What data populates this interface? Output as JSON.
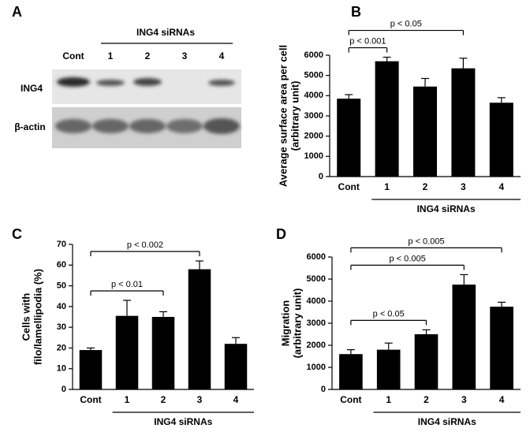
{
  "blot": {
    "panel": "A",
    "group_label": "ING4 siRNAs",
    "lanes": [
      "Cont",
      "1",
      "2",
      "3",
      "4"
    ],
    "rows": [
      "ING4",
      "β-actin"
    ]
  },
  "chart_data": [
    {
      "type": "bar",
      "panel": "B",
      "ylabel": [
        "Average surface area per cell",
        "(arbitrary unit)"
      ],
      "categories": [
        "Cont",
        "1",
        "2",
        "3",
        "4"
      ],
      "values": [
        3850,
        5700,
        4450,
        5350,
        3650
      ],
      "errors": [
        200,
        200,
        400,
        500,
        250
      ],
      "color": "#000000",
      "ylim": [
        0,
        6000
      ],
      "yticks": [
        0,
        1000,
        2000,
        3000,
        4000,
        5000,
        6000
      ],
      "group_label": "ING4 siRNAs",
      "annotations": [
        {
          "text": "p < 0.001",
          "from": "Cont",
          "to": "1"
        },
        {
          "text": "p < 0.05",
          "from": "Cont",
          "to": "3"
        }
      ]
    },
    {
      "type": "bar",
      "panel": "C",
      "ylabel": [
        "Cells with",
        "filo/lamellipodia (%)"
      ],
      "categories": [
        "Cont",
        "1",
        "2",
        "3",
        "4"
      ],
      "values": [
        19,
        35.5,
        35,
        58,
        22
      ],
      "errors": [
        1,
        7.5,
        2.5,
        4,
        3
      ],
      "color": "#000000",
      "ylim": [
        0,
        70
      ],
      "yticks": [
        0,
        10,
        20,
        30,
        40,
        50,
        60,
        70
      ],
      "group_label": "ING4 siRNAs",
      "annotations": [
        {
          "text": "p < 0.01",
          "from": "Cont",
          "to": "2"
        },
        {
          "text": "p < 0.002",
          "from": "Cont",
          "to": "3"
        }
      ]
    },
    {
      "type": "bar",
      "panel": "D",
      "ylabel": [
        "Migration",
        "(arbitrary unit)"
      ],
      "categories": [
        "Cont",
        "1",
        "2",
        "3",
        "4"
      ],
      "values": [
        1600,
        1800,
        2500,
        4750,
        3750
      ],
      "errors": [
        200,
        300,
        200,
        450,
        200
      ],
      "color": "#000000",
      "ylim": [
        0,
        6000
      ],
      "yticks": [
        0,
        1000,
        2000,
        3000,
        4000,
        5000,
        6000
      ],
      "group_label": "ING4 siRNAs",
      "annotations": [
        {
          "text": "p < 0.05",
          "from": "Cont",
          "to": "2"
        },
        {
          "text": "p < 0.005",
          "from": "Cont",
          "to": "3"
        },
        {
          "text": "p < 0.005",
          "from": "Cont",
          "to": "4"
        }
      ]
    }
  ]
}
